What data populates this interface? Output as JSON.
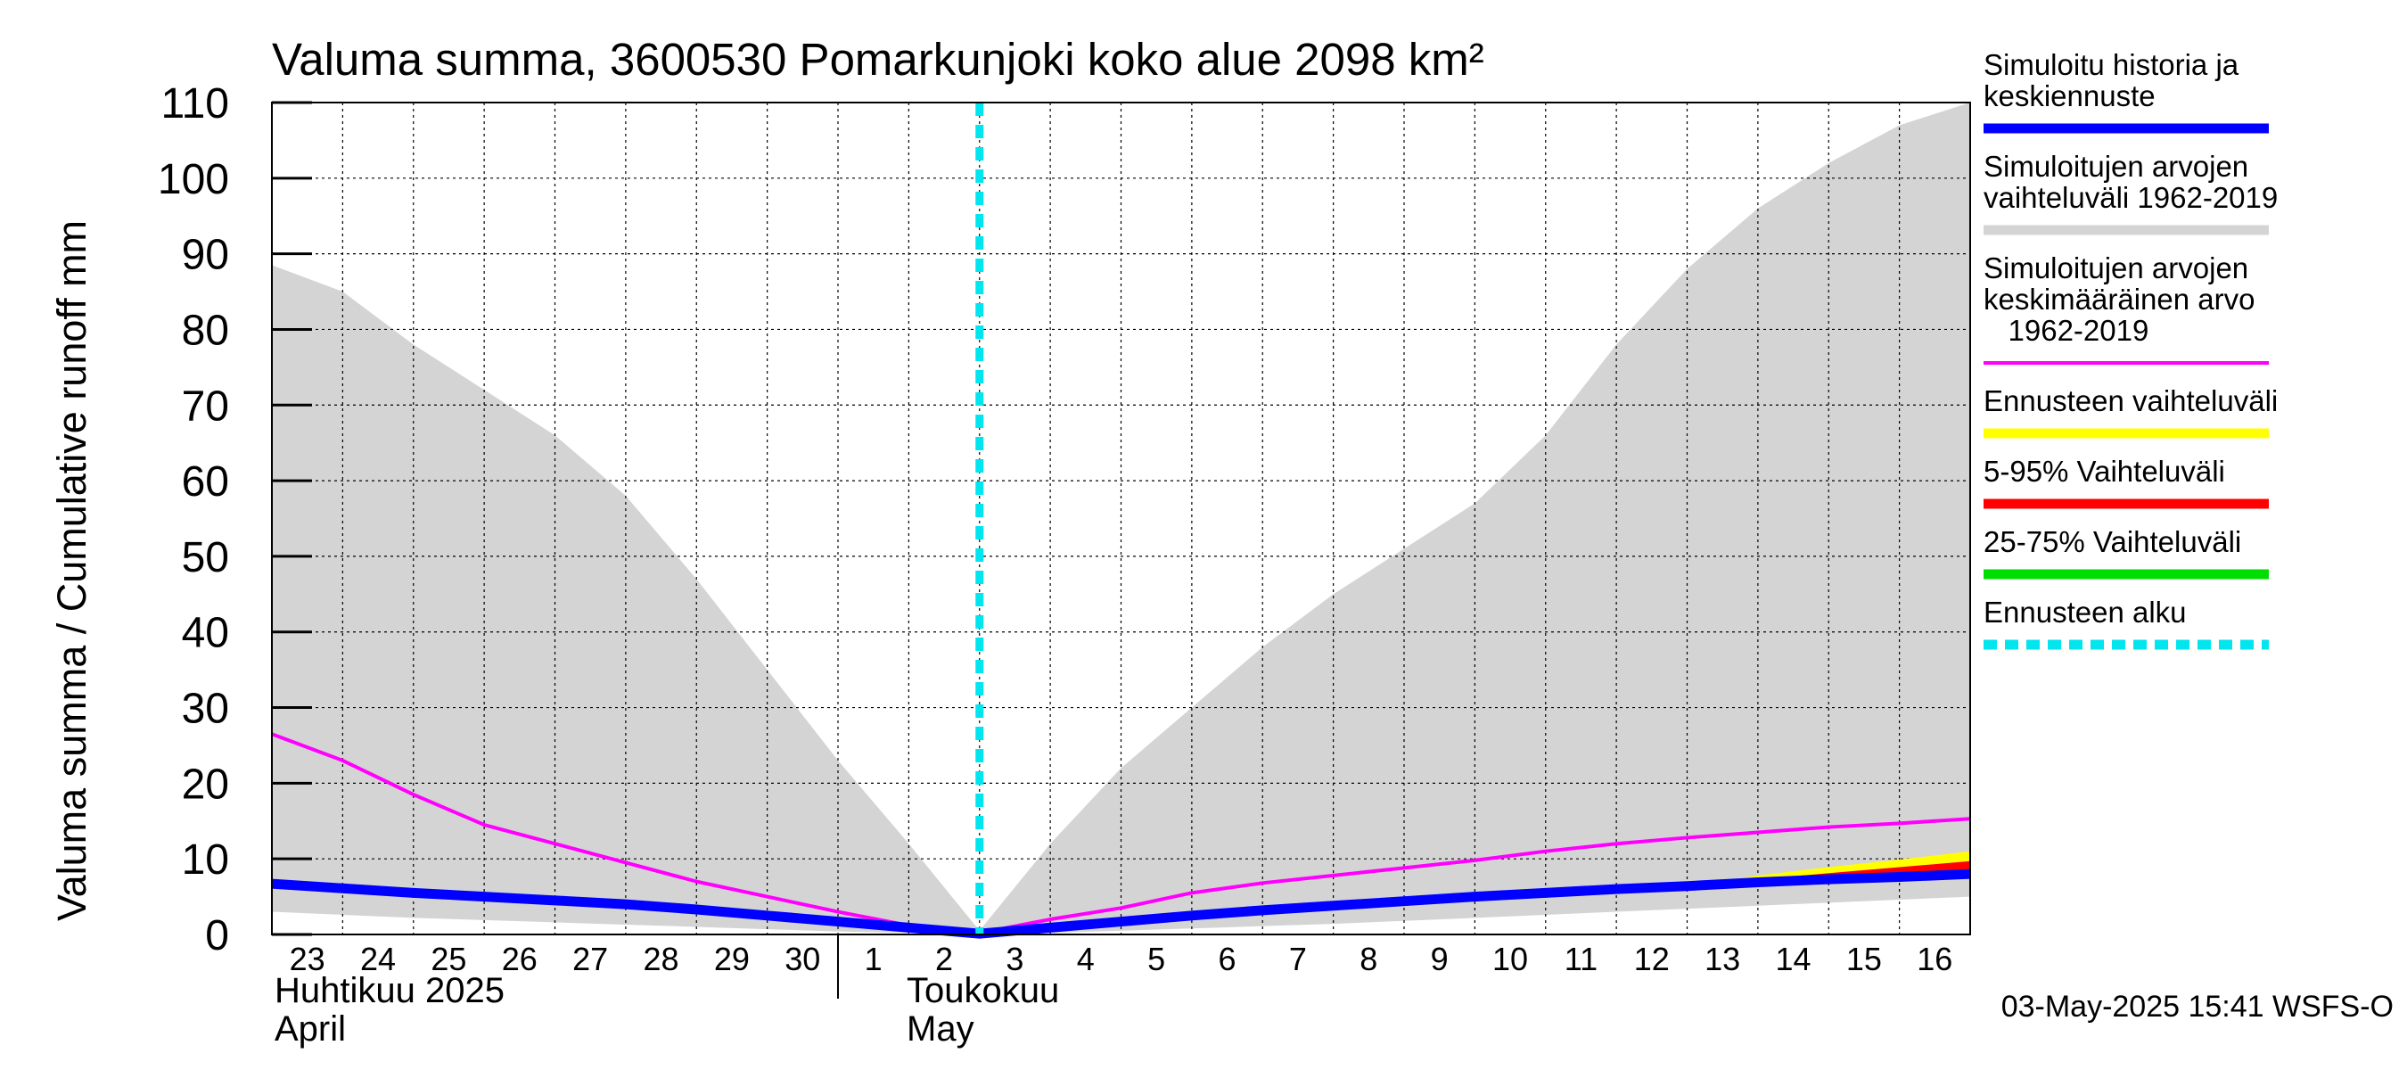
{
  "chart_data": {
    "type": "area",
    "title": "Valuma summa, 3600530 Pomarkunjoki koko alue 2098 km²",
    "ylabel": "Valuma summa / Cumulative runoff    mm",
    "ylim": [
      0,
      110
    ],
    "yticks": [
      0,
      10,
      20,
      30,
      40,
      50,
      60,
      70,
      80,
      90,
      100,
      110
    ],
    "xlim": [
      "2025-04-23",
      "2025-05-17"
    ],
    "x_tick_labels": [
      "23",
      "24",
      "25",
      "26",
      "27",
      "28",
      "29",
      "30",
      "1",
      "2",
      "3",
      "4",
      "5",
      "6",
      "7",
      "8",
      "9",
      "10",
      "11",
      "12",
      "13",
      "14",
      "15",
      "16"
    ],
    "month_labels": [
      {
        "fi": "Huhtikuu  2025",
        "en": "April"
      },
      {
        "fi": "Toukokuu",
        "en": "May"
      }
    ],
    "grid": true,
    "legend_position": "right",
    "forecast_start": "2025-05-03",
    "x": [
      "2025-04-23",
      "2025-04-24",
      "2025-04-25",
      "2025-04-26",
      "2025-04-27",
      "2025-04-28",
      "2025-04-29",
      "2025-04-30",
      "2025-05-01",
      "2025-05-02",
      "2025-05-03",
      "2025-05-04",
      "2025-05-05",
      "2025-05-06",
      "2025-05-07",
      "2025-05-08",
      "2025-05-09",
      "2025-05-10",
      "2025-05-11",
      "2025-05-12",
      "2025-05-13",
      "2025-05-14",
      "2025-05-15",
      "2025-05-16",
      "2025-05-17"
    ],
    "range_band": {
      "upper": [
        88.5,
        85,
        78,
        72,
        66,
        58,
        47,
        35,
        23,
        12,
        0.5,
        12,
        22,
        30,
        38,
        45,
        51,
        57,
        66,
        78,
        88,
        96,
        102,
        107,
        110
      ],
      "lower": [
        3,
        2.6,
        2.2,
        1.9,
        1.6,
        1.3,
        1.0,
        0.7,
        0.4,
        0.2,
        0.05,
        0.2,
        0.5,
        0.8,
        1.1,
        1.4,
        1.8,
        2.2,
        2.6,
        3.0,
        3.4,
        3.8,
        4.2,
        4.6,
        5.0
      ],
      "color": "#d4d4d4"
    },
    "series": [
      {
        "name": "Simuloitujen arvojen keskimääräinen arvo 1962-2019",
        "color": "#ff00ff",
        "values": [
          26.5,
          23,
          18.5,
          14.5,
          12,
          9.5,
          7,
          5,
          3,
          1.2,
          0.2,
          2,
          3.5,
          5.5,
          6.8,
          7.8,
          8.8,
          9.8,
          11,
          12,
          12.8,
          13.5,
          14.2,
          14.7,
          15.3
        ]
      },
      {
        "name": "Simuloitu historia ja keskiennuste",
        "color": "#0000ff",
        "values": [
          6.7,
          6.1,
          5.5,
          5.0,
          4.5,
          4.0,
          3.3,
          2.5,
          1.7,
          0.9,
          0.1,
          0.9,
          1.7,
          2.5,
          3.2,
          3.8,
          4.4,
          5.0,
          5.5,
          6.0,
          6.4,
          6.9,
          7.3,
          7.6,
          8.0
        ]
      }
    ],
    "forecast_bands": [
      {
        "name": "Ennusteen vaihteluväli",
        "color": "#ffff00",
        "x": [
          "2025-05-13",
          "2025-05-14",
          "2025-05-15",
          "2025-05-16",
          "2025-05-17"
        ],
        "upper": [
          6.5,
          7.8,
          8.9,
          9.9,
          11.0
        ],
        "lower": [
          6.2,
          6.6,
          7.0,
          7.3,
          7.6
        ]
      },
      {
        "name": "5-95% Vaihteluväli",
        "color": "#ff0000",
        "x": [
          "2025-05-13",
          "2025-05-14",
          "2025-05-15",
          "2025-05-16",
          "2025-05-17"
        ],
        "upper": [
          6.4,
          7.3,
          8.1,
          8.9,
          9.7
        ],
        "lower": [
          6.3,
          6.7,
          7.1,
          7.4,
          7.7
        ]
      },
      {
        "name": "25-75% Vaihteluväli",
        "color": "#00dd00",
        "x": [
          "2025-05-13",
          "2025-05-14",
          "2025-05-15",
          "2025-05-16",
          "2025-05-17"
        ],
        "upper": [
          6.4,
          7.0,
          7.5,
          7.9,
          8.3
        ],
        "lower": [
          6.35,
          6.8,
          7.2,
          7.5,
          7.8
        ]
      }
    ],
    "legend": [
      {
        "lines": [
          "Simuloitu historia ja",
          "keskiennuste"
        ],
        "color": "#0000ff",
        "style": "solid"
      },
      {
        "lines": [
          "Simuloitujen arvojen",
          "vaihteluväli 1962-2019"
        ],
        "color": "#d4d4d4",
        "style": "solid"
      },
      {
        "lines": [
          "Simuloitujen arvojen",
          "keskimääräinen arvo",
          "   1962-2019"
        ],
        "color": "#ff00ff",
        "style": "thin"
      },
      {
        "lines": [
          "Ennusteen vaihteluväli"
        ],
        "color": "#ffff00",
        "style": "solid"
      },
      {
        "lines": [
          "5-95% Vaihteluväli"
        ],
        "color": "#ff0000",
        "style": "solid"
      },
      {
        "lines": [
          "25-75% Vaihteluväli"
        ],
        "color": "#00dd00",
        "style": "solid"
      },
      {
        "lines": [
          "Ennusteen alku"
        ],
        "color": "#00e5ee",
        "style": "dashed"
      }
    ],
    "footer": "03-May-2025 15:41 WSFS-O"
  }
}
